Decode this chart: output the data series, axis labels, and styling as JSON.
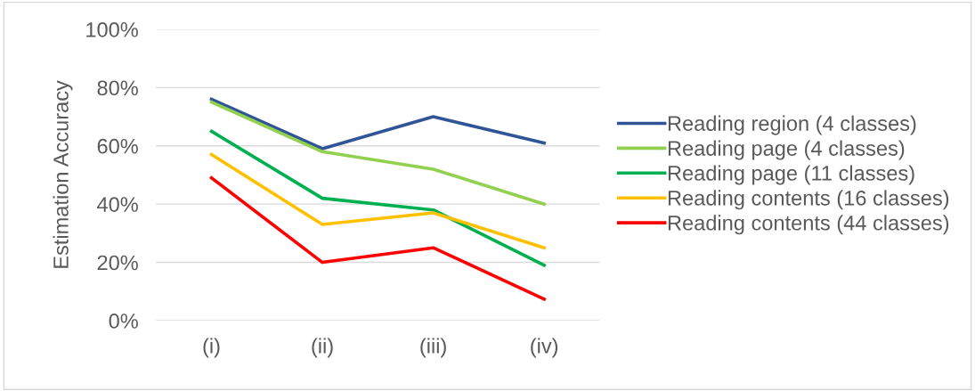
{
  "chart_data": {
    "type": "line",
    "ylabel": "Estimation Accuracy",
    "categories": [
      "(i)",
      "(ii)",
      "(iii)",
      "(iv)"
    ],
    "series": [
      {
        "name": "Reading region (4 classes)",
        "color": "#2f5597",
        "values": [
          76,
          59,
          70,
          61
        ]
      },
      {
        "name": "Reading page (4 classes)",
        "color": "#92d050",
        "values": [
          75,
          58,
          52,
          40
        ]
      },
      {
        "name": "Reading page (11 classes)",
        "color": "#00b050",
        "values": [
          65,
          42,
          38,
          19
        ]
      },
      {
        "name": "Reading contents (16 classes)",
        "color": "#ffc000",
        "values": [
          57,
          33,
          37,
          25
        ]
      },
      {
        "name": "Reading contents (44 classes)",
        "color": "#ff0000",
        "values": [
          49,
          20,
          25,
          7.4
        ]
      }
    ],
    "ylim": [
      0,
      100
    ],
    "yticks": [
      {
        "value": 0,
        "label": "0%"
      },
      {
        "value": 20,
        "label": "20%"
      },
      {
        "value": 40,
        "label": "40%"
      },
      {
        "value": 60,
        "label": "60%"
      },
      {
        "value": 80,
        "label": "80%"
      },
      {
        "value": 100,
        "label": "100%"
      }
    ],
    "grid": "y",
    "legend": "right",
    "marker": "none",
    "line_style": "solid"
  }
}
